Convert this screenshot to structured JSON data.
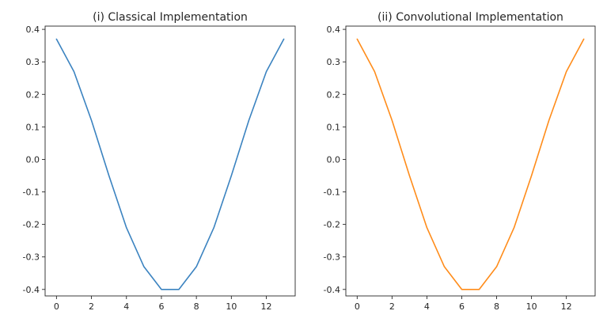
{
  "chart_data": [
    {
      "type": "line",
      "title": "(i) Classical Implementation",
      "xlabel": "",
      "ylabel": "",
      "x": [
        0,
        1,
        2,
        3,
        4,
        5,
        6,
        7,
        8,
        9,
        10,
        11,
        12,
        13
      ],
      "series": [
        {
          "values": [
            0.37,
            0.27,
            0.12,
            -0.05,
            -0.21,
            -0.33,
            -0.4,
            -0.4,
            -0.33,
            -0.21,
            -0.05,
            0.12,
            0.27,
            0.37
          ],
          "color": "#3b83c0"
        }
      ],
      "xlim": [
        -0.65,
        13.65
      ],
      "ylim": [
        -0.42,
        0.41
      ],
      "xticks": [
        0,
        2,
        4,
        6,
        8,
        10,
        12
      ],
      "xtick_labels": [
        "0",
        "2",
        "4",
        "6",
        "8",
        "10",
        "12"
      ],
      "yticks": [
        0.4,
        0.3,
        0.2,
        0.1,
        0.0,
        -0.1,
        -0.2,
        -0.3,
        -0.4
      ],
      "ytick_labels": [
        "0.4",
        "0.3",
        "0.2",
        "0.1",
        "0.0",
        "-0.1",
        "-0.2",
        "-0.3",
        "-0.4"
      ],
      "grid": false,
      "legend": "none"
    },
    {
      "type": "line",
      "title": "(ii) Convolutional Implementation",
      "xlabel": "",
      "ylabel": "",
      "x": [
        0,
        1,
        2,
        3,
        4,
        5,
        6,
        7,
        8,
        9,
        10,
        11,
        12,
        13
      ],
      "series": [
        {
          "values": [
            0.37,
            0.27,
            0.12,
            -0.05,
            -0.21,
            -0.33,
            -0.4,
            -0.4,
            -0.33,
            -0.21,
            -0.05,
            0.12,
            0.27,
            0.37
          ],
          "color": "#ff8c1a"
        }
      ],
      "xlim": [
        -0.65,
        13.65
      ],
      "ylim": [
        -0.42,
        0.41
      ],
      "xticks": [
        0,
        2,
        4,
        6,
        8,
        10,
        12
      ],
      "xtick_labels": [
        "0",
        "2",
        "4",
        "6",
        "8",
        "10",
        "12"
      ],
      "yticks": [
        0.4,
        0.3,
        0.2,
        0.1,
        0.0,
        -0.1,
        -0.2,
        -0.3,
        -0.4
      ],
      "ytick_labels": [
        "0.4",
        "0.3",
        "0.2",
        "0.1",
        "0.0",
        "-0.1",
        "-0.2",
        "-0.3",
        "-0.4"
      ],
      "grid": false,
      "legend": "none"
    }
  ]
}
